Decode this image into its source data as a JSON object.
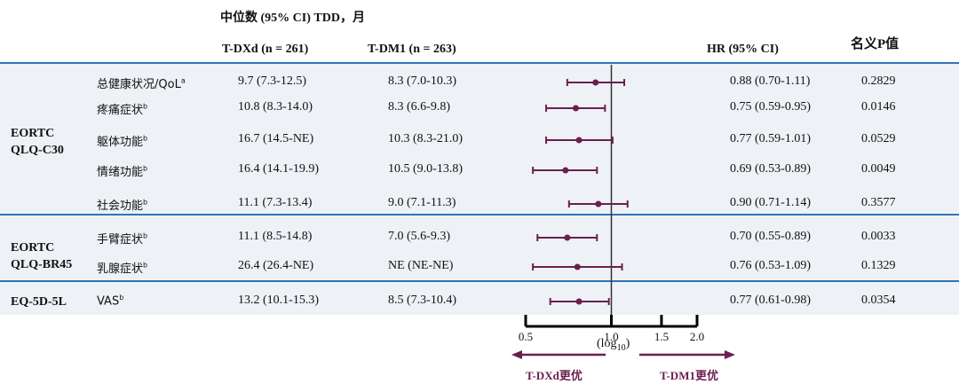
{
  "header": {
    "median_title": "中位数 (95% CI) TDD，月",
    "tdxd_col": "T-DXd (n = 261)",
    "tdm1_col": "T-DM1 (n = 263)",
    "hr_col": "HR (95% CI)",
    "p_col": "名义P值"
  },
  "groups": [
    {
      "line1": "EORTC",
      "line2": "QLQ-C30"
    },
    {
      "line1": "EORTC",
      "line2": "QLQ-BR45"
    },
    {
      "line1": "EQ-5D-5L",
      "line2": ""
    }
  ],
  "rows": [
    {
      "label": "总健康状况/QoL",
      "sup": "a",
      "tdxd": "9.7 (7.3-12.5)",
      "tdm1": "8.3 (7.0-10.3)",
      "hr_text": "0.88 (0.70-1.11)",
      "p": "0.2829"
    },
    {
      "label": "疼痛症状",
      "sup": "b",
      "tdxd": "10.8 (8.3-14.0)",
      "tdm1": "8.3 (6.6-9.8)",
      "hr_text": "0.75 (0.59-0.95)",
      "p": "0.0146"
    },
    {
      "label": "躯体功能",
      "sup": "b",
      "tdxd": "16.7 (14.5-NE)",
      "tdm1": "10.3 (8.3-21.0)",
      "hr_text": "0.77 (0.59-1.01)",
      "p": "0.0529"
    },
    {
      "label": "情绪功能",
      "sup": "b",
      "tdxd": "16.4 (14.1-19.9)",
      "tdm1": "10.5 (9.0-13.8)",
      "hr_text": "0.69 (0.53-0.89)",
      "p": "0.0049"
    },
    {
      "label": "社会功能",
      "sup": "b",
      "tdxd": "11.1 (7.3-13.4)",
      "tdm1": "9.0 (7.1-11.3)",
      "hr_text": "0.90 (0.71-1.14)",
      "p": "0.3577"
    },
    {
      "label": "手臂症状",
      "sup": "b",
      "tdxd": "11.1 (8.5-14.8)",
      "tdm1": "7.0 (5.6-9.3)",
      "hr_text": "0.70 (0.55-0.89)",
      "p": "0.0033"
    },
    {
      "label": "乳腺症状",
      "sup": "b",
      "tdxd": "26.4 (26.4-NE)",
      "tdm1": "NE (NE-NE)",
      "hr_text": "0.76 (0.53-1.09)",
      "p": "0.1329"
    },
    {
      "label": "VAS",
      "sup": "b",
      "tdxd": "13.2 (10.1-15.3)",
      "tdm1": "8.5 (7.3-10.4)",
      "hr_text": "0.77 (0.61-0.98)",
      "p": "0.0354"
    }
  ],
  "axis": {
    "scale_label": "(log",
    "scale_sub": "10",
    "scale_close": ")",
    "left_arrow_label": "T-DXd更优",
    "right_arrow_label": "T-DM1更优"
  },
  "colors": {
    "marker": "#6b1f4f",
    "band": "#eef1f5",
    "separator": "#2f75b5",
    "arrow_label": "#6b1f4f"
  },
  "chart_data": {
    "type": "scatter",
    "subtype": "forest",
    "x_scale": "log10",
    "xlim": [
      0.5,
      2.0
    ],
    "x_ticks": [
      0.5,
      1.0,
      1.5,
      2.0
    ],
    "x_tick_labels": [
      "0.5",
      "1.0",
      "1.5",
      "2.0"
    ],
    "reference_line": 1.0,
    "categories": [
      "总健康状况/QoL",
      "疼痛症状",
      "躯体功能",
      "情绪功能",
      "社会功能",
      "手臂症状",
      "乳腺症状",
      "VAS"
    ],
    "hr": [
      0.88,
      0.75,
      0.77,
      0.69,
      0.9,
      0.7,
      0.76,
      0.77
    ],
    "ci_low": [
      0.7,
      0.59,
      0.59,
      0.53,
      0.71,
      0.55,
      0.53,
      0.61
    ],
    "ci_high": [
      1.11,
      0.95,
      1.01,
      0.89,
      1.14,
      0.89,
      1.09,
      0.98
    ]
  }
}
